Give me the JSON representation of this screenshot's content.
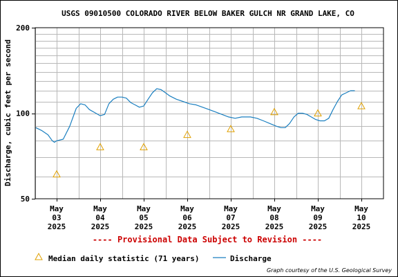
{
  "chart_data": {
    "type": "line",
    "title": "USGS 09010500 COLORADO RIVER BELOW BAKER GULCH NR GRAND LAKE, CO",
    "ylabel": "Discharge, cubic feet per second",
    "xlabel": "",
    "y_scale": "log",
    "ylim": [
      50,
      200
    ],
    "y_ticks": [
      "50",
      "100",
      "200"
    ],
    "x_ticks": [
      {
        "month": "May",
        "day": "03",
        "year": "2025"
      },
      {
        "month": "May",
        "day": "04",
        "year": "2025"
      },
      {
        "month": "May",
        "day": "05",
        "year": "2025"
      },
      {
        "month": "May",
        "day": "06",
        "year": "2025"
      },
      {
        "month": "May",
        "day": "07",
        "year": "2025"
      },
      {
        "month": "May",
        "day": "08",
        "year": "2025"
      },
      {
        "month": "May",
        "day": "09",
        "year": "2025"
      },
      {
        "month": "May",
        "day": "10",
        "year": "2025"
      }
    ],
    "xlim_days": [
      -0.48,
      7.93
    ],
    "grid": true,
    "provisional_note": "---- Provisional Data Subject to Revision ----",
    "credit": "Graph courtesy of the U.S. Geological Survey",
    "median_series": {
      "name": "Median daily statistic (71 years)",
      "color": "#e0a000",
      "marker": "triangle",
      "days": [
        0,
        1,
        2,
        3,
        4,
        5,
        6,
        7
      ],
      "values": [
        61,
        76,
        76,
        84,
        88,
        101,
        100,
        106
      ]
    },
    "discharge_series": {
      "name": "Discharge",
      "color": "#1a7fc0",
      "days": [
        -0.48,
        -0.35,
        -0.2,
        -0.1,
        -0.05,
        0.0,
        0.15,
        0.3,
        0.45,
        0.55,
        0.65,
        0.75,
        0.9,
        1.0,
        1.1,
        1.2,
        1.3,
        1.4,
        1.5,
        1.6,
        1.7,
        1.8,
        1.9,
        2.0,
        2.1,
        2.2,
        2.3,
        2.4,
        2.5,
        2.6,
        2.75,
        2.9,
        3.05,
        3.2,
        3.35,
        3.5,
        3.65,
        3.8,
        3.95,
        4.1,
        4.25,
        4.35,
        4.45,
        4.6,
        4.75,
        4.9,
        5.05,
        5.15,
        5.25,
        5.35,
        5.45,
        5.55,
        5.65,
        5.75,
        5.85,
        5.95,
        6.05,
        6.15,
        6.25,
        6.35,
        6.45,
        6.55,
        6.65,
        6.75,
        6.85
      ],
      "values": [
        89,
        87,
        84,
        80,
        79,
        80,
        81,
        90,
        104,
        108,
        107,
        103,
        100,
        98,
        99,
        108,
        112,
        114,
        114,
        113,
        109,
        107,
        105,
        106,
        112,
        118,
        122,
        121,
        118,
        115,
        112,
        110,
        108,
        107,
        105,
        103,
        101,
        99,
        97,
        96,
        97,
        97,
        97,
        96,
        94,
        92,
        90,
        89,
        89,
        92,
        97,
        100,
        100,
        99,
        97,
        95,
        94,
        94,
        96,
        103,
        110,
        116,
        118,
        120,
        120
      ]
    }
  }
}
